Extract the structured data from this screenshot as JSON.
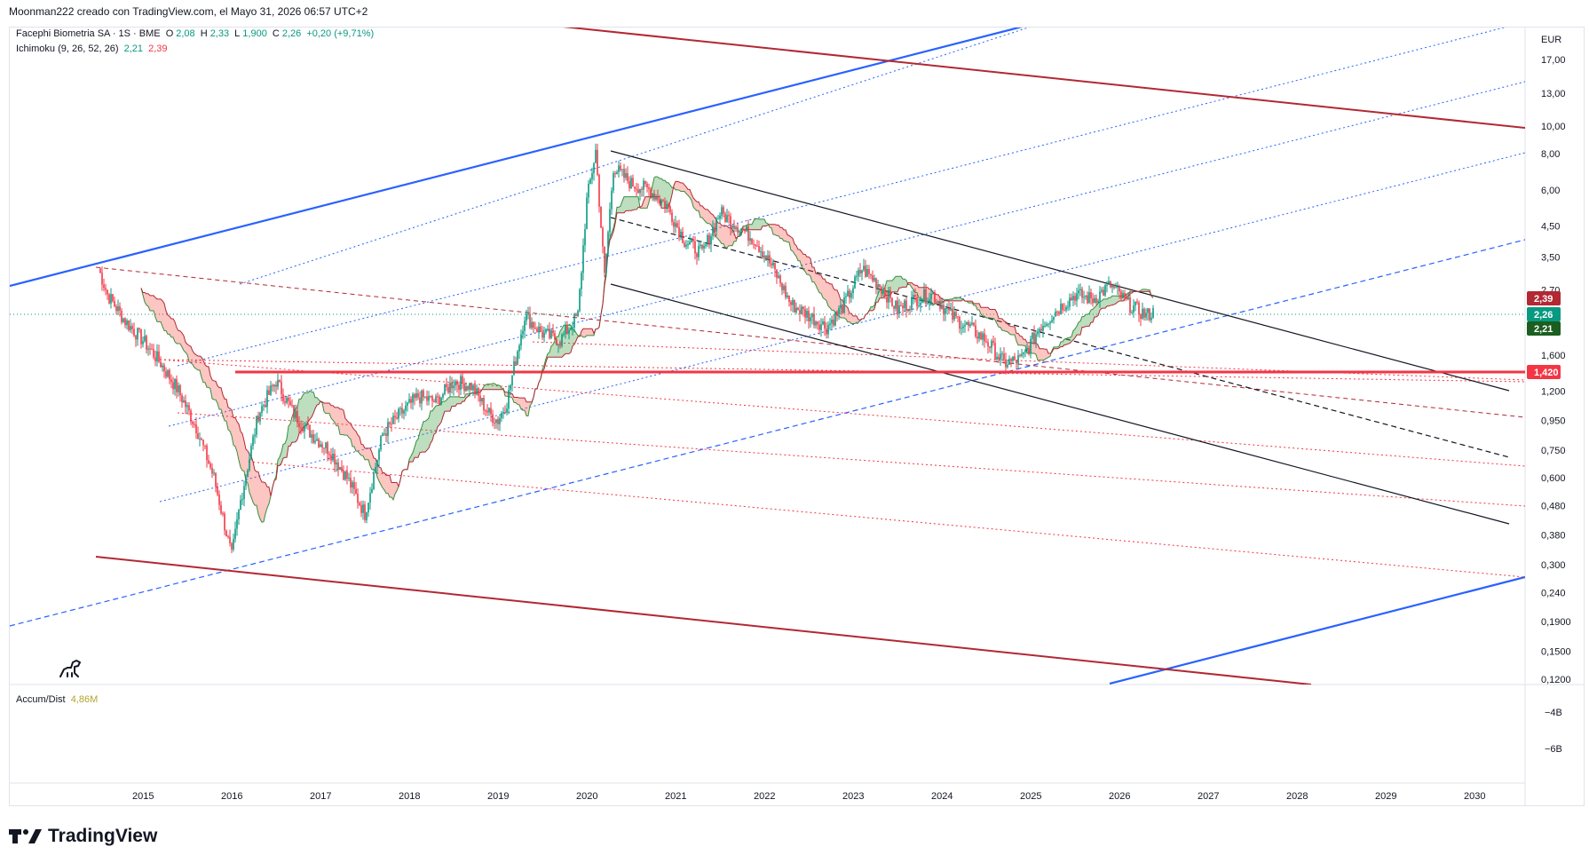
{
  "header": {
    "attribution": "Moonman222 creado con TradingView.com, el Mayo 31, 2026 06:57 UTC+2"
  },
  "symbol": {
    "name": "Facephi Biometria SA · 1S · BME",
    "o_label": "O",
    "o_value": "2,08",
    "h_label": "H",
    "h_value": "2,33",
    "l_label": "L",
    "l_value": "1,900",
    "c_label": "C",
    "c_value": "2,26",
    "change": "+0,20 (+9,71%)"
  },
  "ichimoku": {
    "label": "Ichimoku (9, 26, 52, 26)",
    "v1": "2,21",
    "v2": "2,39"
  },
  "accum": {
    "label": "Accum/Dist",
    "value": "4,86M"
  },
  "currency": "EUR",
  "footer": {
    "brand": "TradingView"
  },
  "colors": {
    "up": "#089981",
    "down": "#f23645",
    "blue": "#2962ff",
    "darkred": "#b22833",
    "black": "#131722"
  },
  "chart_data": {
    "type": "line",
    "y_scale": "log",
    "x_ticks": [
      "2015",
      "2016",
      "2017",
      "2018",
      "2019",
      "2020",
      "2021",
      "2022",
      "2023",
      "2024",
      "2025",
      "2026",
      "2027",
      "2028",
      "2029",
      "2030"
    ],
    "y_ticks": [
      "17,00",
      "13,00",
      "10,00",
      "8,00",
      "6,00",
      "4,50",
      "3,50",
      "2,70",
      "1,600",
      "1,200",
      "0,950",
      "0,750",
      "0,600",
      "0,480",
      "0,380",
      "0,300",
      "0,240",
      "0,1900",
      "0,1500",
      "0,1200"
    ],
    "y_tick_values": [
      17,
      13,
      10,
      8,
      6,
      4.5,
      3.5,
      2.7,
      1.6,
      1.2,
      0.95,
      0.75,
      0.6,
      0.48,
      0.38,
      0.3,
      0.24,
      0.19,
      0.15,
      0.12
    ],
    "price_tags": [
      {
        "label": "2,39",
        "value": 2.39,
        "color": "#b22833"
      },
      {
        "label": "2,26",
        "value": 2.26,
        "color": "#089981"
      },
      {
        "label": "2,21",
        "value": 2.21,
        "color": "#1b5e20"
      },
      {
        "label": "1,420",
        "value": 1.42,
        "color": "#f23645"
      }
    ],
    "ad_ticks": [
      "−4B",
      "−6B"
    ],
    "close_series": {
      "name": "",
      "x": [
        2014.5,
        2014.6,
        2014.8,
        2015.0,
        2015.2,
        2015.4,
        2015.6,
        2015.8,
        2016.0,
        2016.1,
        2016.3,
        2016.5,
        2016.7,
        2016.9,
        2017.1,
        2017.3,
        2017.5,
        2017.7,
        2017.9,
        2018.1,
        2018.3,
        2018.5,
        2018.7,
        2018.9,
        2019.0,
        2019.1,
        2019.3,
        2019.5,
        2019.7,
        2019.9,
        2020.0,
        2020.1,
        2020.2,
        2020.3,
        2020.5,
        2020.7,
        2020.9,
        2021.1,
        2021.3,
        2021.5,
        2021.7,
        2021.9,
        2022.1,
        2022.3,
        2022.5,
        2022.7,
        2022.9,
        2023.1,
        2023.3,
        2023.5,
        2023.7,
        2023.9,
        2024.1,
        2024.3,
        2024.5,
        2024.7,
        2024.9,
        2025.1,
        2025.3,
        2025.5,
        2025.7,
        2025.9,
        2026.1,
        2026.3,
        2026.4
      ],
      "y": [
        3.2,
        2.6,
        2.1,
        1.8,
        1.5,
        1.2,
        0.9,
        0.6,
        0.32,
        0.5,
        1.0,
        1.3,
        1.0,
        0.85,
        0.75,
        0.6,
        0.45,
        0.85,
        1.0,
        1.15,
        1.1,
        1.3,
        1.25,
        1.0,
        0.95,
        1.1,
        2.2,
        1.9,
        1.8,
        2.2,
        5.5,
        8.2,
        3.0,
        7.2,
        6.3,
        6.0,
        5.3,
        4.0,
        3.6,
        5.0,
        4.5,
        4.0,
        3.2,
        2.4,
        2.2,
        2.0,
        2.4,
        3.2,
        2.8,
        2.3,
        2.5,
        2.6,
        2.2,
        2.0,
        1.8,
        1.5,
        1.55,
        2.0,
        2.3,
        2.6,
        2.5,
        2.8,
        2.4,
        2.2,
        2.26
      ]
    },
    "ad_series": {
      "name": "",
      "x": [
        2014.5,
        2026.4
      ],
      "y": [
        4.86,
        4.86
      ]
    }
  }
}
